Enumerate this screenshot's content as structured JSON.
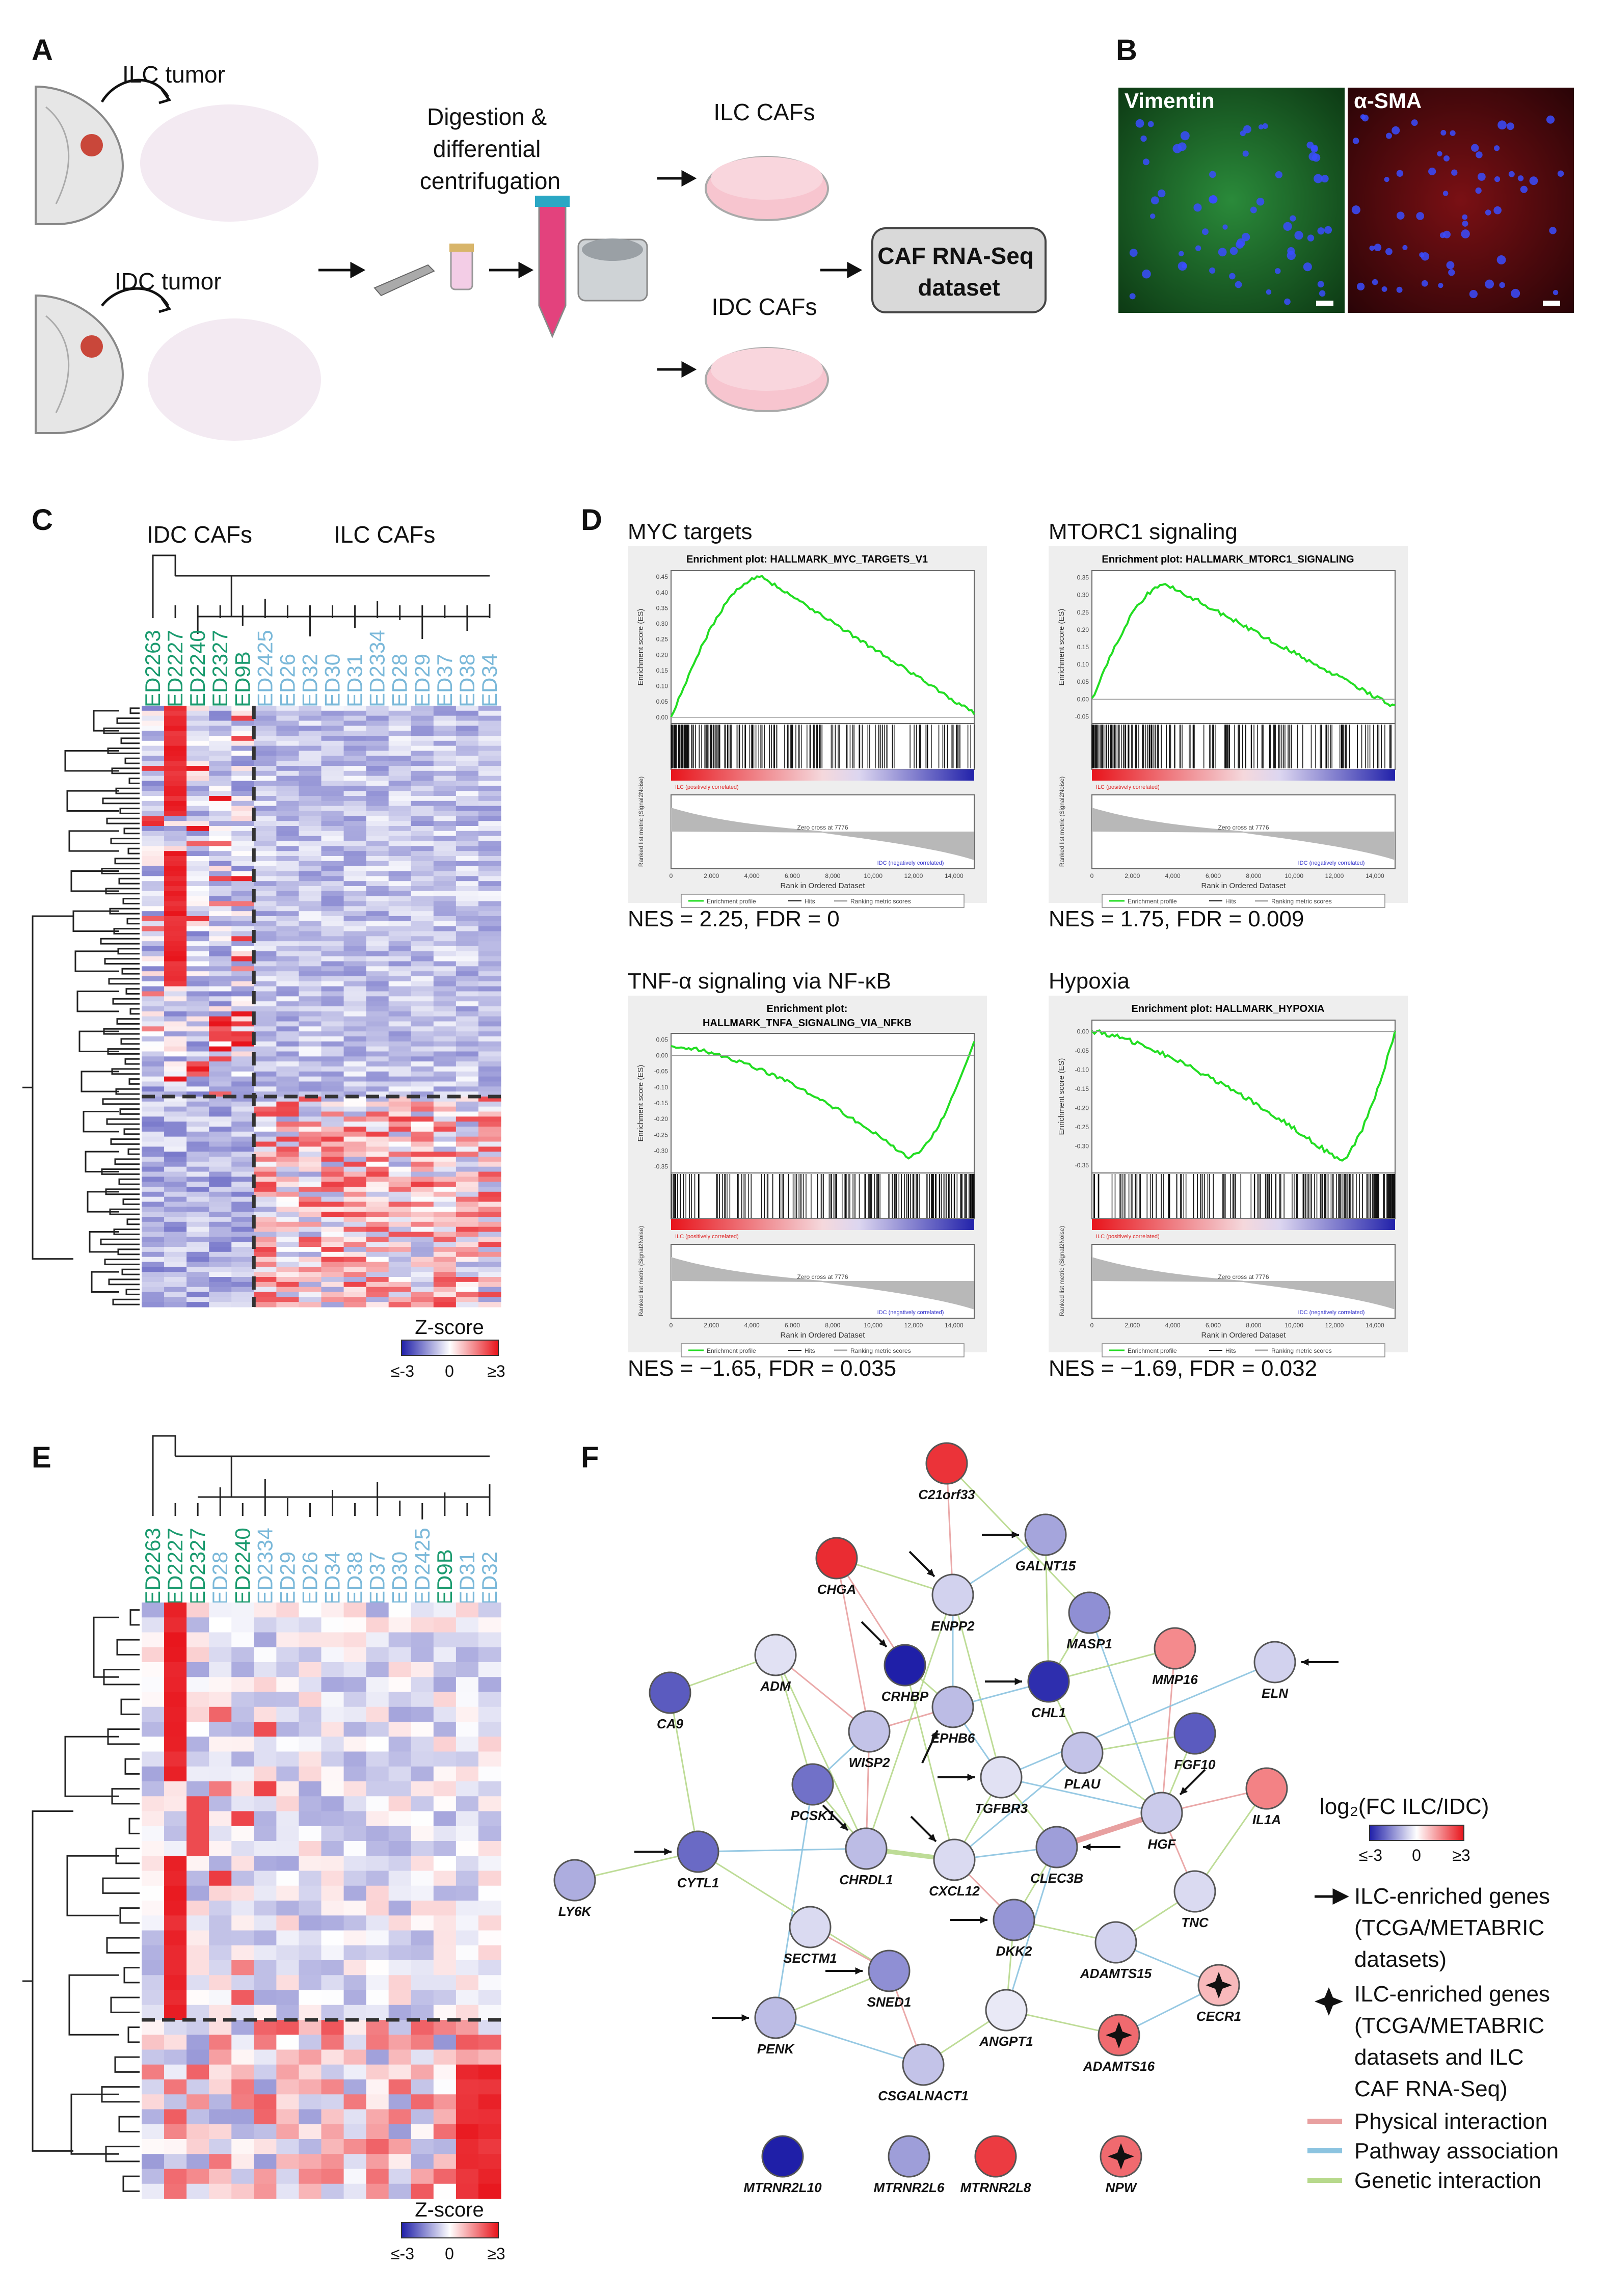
{
  "panels": {
    "A": {
      "label": "A",
      "ilc_tumor": "ILC tumor",
      "idc_tumor": "IDC tumor",
      "digestion": [
        "Digestion &",
        "differential",
        "centrifugation"
      ],
      "ilc_cafs": "ILC CAFs",
      "idc_cafs": "IDC CAFs",
      "dataset_box": [
        "CAF RNA-Seq",
        "dataset"
      ]
    },
    "B": {
      "label": "B",
      "stain_left": "Vimentin",
      "stain_right": "α-SMA"
    },
    "C": {
      "label": "C",
      "group_idc": "IDC CAFs",
      "group_ilc": "ILC CAFs",
      "samples_idc": [
        "ED2263",
        "ED2227",
        "ED2240",
        "ED2327",
        "ED9B"
      ],
      "samples_ilc": [
        "ED2425",
        "ED26",
        "ED32",
        "ED30",
        "ED31",
        "ED2334",
        "ED28",
        "ED29",
        "ED37",
        "ED38",
        "ED34"
      ],
      "zscore_title": "Z-score",
      "zscore_ticks": [
        "≤-3",
        "0",
        "≥3"
      ]
    },
    "D": {
      "label": "D",
      "plots": [
        {
          "heading": "MYC targets",
          "title": "Enrichment plot: HALLMARK_MYC_TARGETS_V1",
          "stats": "NES = 2.25, FDR = 0",
          "yticks": [
            "0.45",
            "0.40",
            "0.35",
            "0.30",
            "0.25",
            "0.20",
            "0.15",
            "0.10",
            "0.05",
            "0.00"
          ]
        },
        {
          "heading": "MTORC1 signaling",
          "title": "Enrichment plot: HALLMARK_MTORC1_SIGNALING",
          "stats": "NES = 1.75, FDR = 0.009",
          "yticks": [
            "0.35",
            "0.30",
            "0.25",
            "0.20",
            "0.15",
            "0.10",
            "0.05",
            "0.00",
            "-0.05"
          ]
        },
        {
          "heading": "TNF-α signaling via NF-κB",
          "title": "Enrichment plot:",
          "title2": "HALLMARK_TNFA_SIGNALING_VIA_NFKB",
          "stats": "NES = −1.65, FDR = 0.035",
          "yticks": [
            "0.05",
            "0.00",
            "-0.05",
            "-0.10",
            "-0.15",
            "-0.20",
            "-0.25",
            "-0.30",
            "-0.35"
          ]
        },
        {
          "heading": "Hypoxia",
          "title": "Enrichment plot: HALLMARK_HYPOXIA",
          "stats": "NES = −1.69, FDR = 0.032",
          "yticks": [
            "0.00",
            "-0.05",
            "-0.10",
            "-0.15",
            "-0.20",
            "-0.25",
            "-0.30",
            "-0.35"
          ]
        }
      ],
      "es_axis": "Enrichment score (ES)",
      "metric_axis": "Ranked list metric (Signal2Noise)",
      "rank_axis": "Rank in Ordered Dataset",
      "xticks": [
        "0",
        "2,000",
        "4,000",
        "6,000",
        "8,000",
        "10,000",
        "12,000",
        "14,000"
      ],
      "pos_label": "ILC (positively correlated)",
      "neg_label": "IDC (negatively correlated)",
      "zero_cross": "Zero cross at 7776",
      "legend": [
        "Enrichment profile",
        "Hits",
        "Ranking metric scores"
      ]
    },
    "E": {
      "label": "E",
      "samples": [
        "ED2263",
        "ED2227",
        "ED2327",
        "ED28",
        "ED2240",
        "ED2334",
        "ED29",
        "ED26",
        "ED34",
        "ED38",
        "ED37",
        "ED30",
        "ED2425",
        "ED9B",
        "ED31",
        "ED32"
      ],
      "idc_samples": [
        "ED2263",
        "ED2227",
        "ED2327",
        "ED2240",
        "ED9B"
      ],
      "zscore_title": "Z-score",
      "zscore_ticks": [
        "≤-3",
        "0",
        "≥3"
      ]
    },
    "F": {
      "label": "F",
      "genes": [
        "C21orf33",
        "GALNT15",
        "CHGA",
        "ENPP2",
        "MASP1",
        "MMP16",
        "ELN",
        "CA9",
        "ADM",
        "CRHBP",
        "CHL1",
        "EPHB6",
        "FGF10",
        "WISP2",
        "PLAU",
        "TGFBR3",
        "IL1A",
        "PCSK1",
        "HGF",
        "CYTL1",
        "CHRDL1",
        "CXCL12",
        "CLEC3B",
        "LY6K",
        "TNC",
        "SECTM1",
        "DKK2",
        "ADAMTS15",
        "SNED1",
        "CECR1",
        "PENK",
        "ANGPT1",
        "ADAMTS16",
        "CSGALNACT1",
        "MTRNR2L10",
        "MTRNR2L6",
        "MTRNR2L8",
        "NPW"
      ],
      "legend_title": "log₂(FC ILC/IDC)",
      "legend_ticks": [
        "≤-3",
        "0",
        "≥3"
      ],
      "legend_arrow": [
        "ILC-enriched genes",
        "(TCGA/METABRIC",
        "datasets)"
      ],
      "legend_star": [
        "ILC-enriched genes",
        "(TCGA/METABRIC",
        "datasets and ILC",
        "CAF RNA-Seq)"
      ],
      "legend_edges": [
        "Physical interaction",
        "Pathway association",
        "Genetic interaction"
      ]
    }
  },
  "colors": {
    "idc_sample": "#1a9a6e",
    "ilc_sample": "#7ab8d9",
    "heat_low": "#1f1fa8",
    "heat_mid": "#ffffff",
    "heat_high": "#e8141b",
    "gsea_line": "#22dd22",
    "edge_physical": "#e8a0a0",
    "edge_pathway": "#8cc4e0",
    "edge_genetic": "#b7d98c"
  }
}
